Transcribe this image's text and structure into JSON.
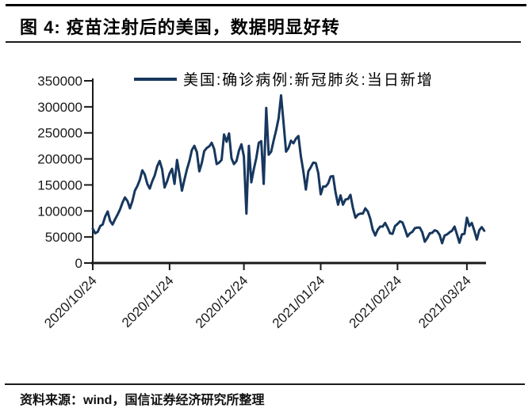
{
  "header": {
    "title": "图 4: 疫苗注射后的美国，数据明显好转"
  },
  "legend": {
    "label": "美国:确诊病例:新冠肺炎:当日新增",
    "line_color": "#17375E"
  },
  "footer": {
    "source": "资料来源：wind，国信证券经济研究所整理"
  },
  "chart_data": {
    "type": "line",
    "title": "图 4: 疫苗注射后的美国，数据明显好转",
    "series_name": "美国:确诊病例:新冠肺炎:当日新增",
    "color": "#17375E",
    "background": "#ffffff",
    "grid": false,
    "legend_position": "top-center",
    "xlabel": "",
    "ylabel": "",
    "ylim": [
      0,
      350000
    ],
    "y_ticks": [
      0,
      50000,
      100000,
      150000,
      200000,
      250000,
      300000,
      350000
    ],
    "x_start_date": "2020/10/24",
    "x_frequency": "daily",
    "x_tick_labels": [
      "2020/10/24",
      "2020/11/24",
      "2020/12/24",
      "2021/01/24",
      "2021/02/24",
      "2021/03/24"
    ],
    "x_tick_day_offsets": [
      0,
      31,
      61,
      92,
      123,
      151
    ],
    "values": [
      66000,
      57000,
      60000,
      71000,
      74000,
      89000,
      99000,
      81000,
      74000,
      84000,
      93000,
      103000,
      116000,
      126000,
      119000,
      105000,
      119000,
      139000,
      148000,
      160000,
      178000,
      170000,
      152000,
      143000,
      157000,
      168000,
      186000,
      196000,
      180000,
      145000,
      157000,
      172000,
      181000,
      152000,
      198000,
      170000,
      139000,
      160000,
      180000,
      196000,
      217000,
      225000,
      213000,
      176000,
      192000,
      215000,
      221000,
      224000,
      231000,
      219000,
      190000,
      193000,
      198000,
      247000,
      233000,
      249000,
      201000,
      190000,
      196000,
      216000,
      228000,
      205000,
      95000,
      225000,
      155000,
      180000,
      202000,
      231000,
      234000,
      152000,
      298000,
      208000,
      214000,
      235000,
      255000,
      278000,
      322000,
      270000,
      214000,
      221000,
      235000,
      230000,
      239000,
      244000,
      205000,
      176000,
      141000,
      176000,
      184000,
      193000,
      192000,
      173000,
      132000,
      147000,
      147000,
      153000,
      166000,
      167000,
      135000,
      112000,
      130000,
      112000,
      122000,
      123000,
      131000,
      106000,
      87000,
      93000,
      95000,
      95000,
      105000,
      99000,
      85000,
      64000,
      53000,
      64000,
      70000,
      70000,
      77000,
      68000,
      57000,
      56000,
      71000,
      75000,
      80000,
      78000,
      65000,
      51000,
      57000,
      60000,
      67000,
      68000,
      68000,
      59000,
      41000,
      48000,
      57000,
      58000,
      63000,
      61000,
      54000,
      38000,
      53000,
      55000,
      59000,
      62000,
      70000,
      55000,
      39000,
      55000,
      56000,
      87000,
      71000,
      77000,
      62000,
      45000,
      63000,
      69000,
      62000
    ]
  }
}
